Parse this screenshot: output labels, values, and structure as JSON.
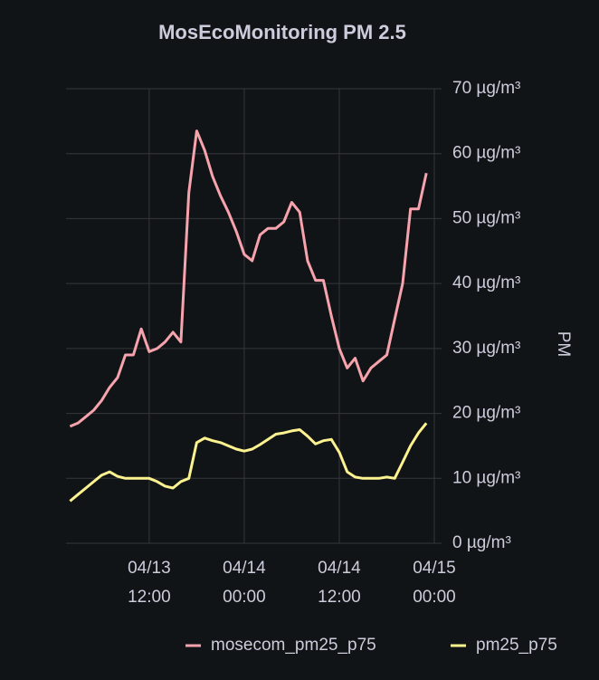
{
  "chart_data": {
    "type": "line",
    "title": "MosEcoMonitoring PM 2.5",
    "y_axis_label": "PM",
    "x": [
      "04/13 02:00",
      "04/13 03:00",
      "04/13 04:00",
      "04/13 05:00",
      "04/13 06:00",
      "04/13 07:00",
      "04/13 08:00",
      "04/13 09:00",
      "04/13 10:00",
      "04/13 11:00",
      "04/13 12:00",
      "04/13 13:00",
      "04/13 14:00",
      "04/13 15:00",
      "04/13 16:00",
      "04/13 17:00",
      "04/13 18:00",
      "04/13 19:00",
      "04/13 20:00",
      "04/13 21:00",
      "04/13 22:00",
      "04/13 23:00",
      "04/14 00:00",
      "04/14 01:00",
      "04/14 02:00",
      "04/14 03:00",
      "04/14 04:00",
      "04/14 05:00",
      "04/14 06:00",
      "04/14 07:00",
      "04/14 08:00",
      "04/14 09:00",
      "04/14 10:00",
      "04/14 11:00",
      "04/14 12:00",
      "04/14 13:00",
      "04/14 14:00",
      "04/14 15:00",
      "04/14 16:00",
      "04/14 17:00",
      "04/14 18:00",
      "04/14 19:00",
      "04/14 20:00",
      "04/14 21:00",
      "04/14 22:00",
      "04/14 23:00"
    ],
    "series": [
      {
        "name": "mosecom_pm25_p75",
        "color": "#f7a3ad",
        "values": [
          18,
          18.5,
          19.5,
          20.5,
          22,
          24,
          25.5,
          29,
          29,
          33,
          29.5,
          30,
          31,
          32.5,
          31,
          54,
          63.5,
          60.5,
          56.5,
          53.5,
          51,
          48,
          44.5,
          43.5,
          47.5,
          48.5,
          48.5,
          49.5,
          52.5,
          51,
          43.5,
          40.5,
          40.5,
          35,
          30,
          27,
          28.5,
          25,
          27,
          28,
          29,
          34.5,
          40,
          51.5,
          51.5,
          57
        ]
      },
      {
        "name": "pm25_p75",
        "color": "#fcf28f",
        "values": [
          6.5,
          7.5,
          8.5,
          9.5,
          10.5,
          11,
          10.3,
          10,
          10,
          10,
          10,
          9.5,
          8.8,
          8.5,
          9.5,
          10,
          15.5,
          16.2,
          15.8,
          15.5,
          15,
          14.5,
          14.2,
          14.5,
          15.2,
          16,
          16.8,
          17,
          17.3,
          17.5,
          16.5,
          15.3,
          15.8,
          16,
          14,
          11,
          10.2,
          10,
          10,
          10,
          10.2,
          10,
          12.5,
          15,
          17,
          18.5
        ]
      }
    ],
    "xlim": [
      "04/13 01:30",
      "04/15 00:55"
    ],
    "xticks": [
      {
        "value": "04/13 12:00",
        "label": "04/13\n12:00"
      },
      {
        "value": "04/14 00:00",
        "label": "04/14\n00:00"
      },
      {
        "value": "04/14 12:00",
        "label": "04/14\n12:00"
      },
      {
        "value": "04/15 00:00",
        "label": "04/15\n00:00"
      }
    ],
    "ylim": [
      0,
      70
    ],
    "yticks": [
      {
        "value": 0,
        "label": "0 µg/m³"
      },
      {
        "value": 10,
        "label": "10 µg/m³"
      },
      {
        "value": 20,
        "label": "20 µg/m³"
      },
      {
        "value": 30,
        "label": "30 µg/m³"
      },
      {
        "value": 40,
        "label": "40 µg/m³"
      },
      {
        "value": 50,
        "label": "50 µg/m³"
      },
      {
        "value": 60,
        "label": "60 µg/m³"
      },
      {
        "value": 70,
        "label": "70 µg/m³"
      }
    ],
    "grid": true,
    "legend": "bottom"
  }
}
